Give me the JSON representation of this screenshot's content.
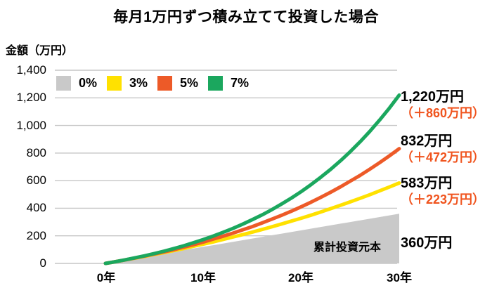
{
  "title": "毎月1万円ずつ積み立てて投資した場合",
  "y_axis_title": "金額（万円）",
  "colors": {
    "background": "#ffffff",
    "grid": "#c6c6c6",
    "text": "#000000",
    "gain_text": "#f0541e"
  },
  "chart_data": {
    "type": "line",
    "title": "毎月1万円ずつ積み立てて投資した場合",
    "xlabel": "",
    "ylabel": "金額（万円）",
    "ylim": [
      0,
      1400
    ],
    "xlim_years": [
      0,
      30
    ],
    "grid": "horizontal",
    "legend_position": "top-left",
    "x": [
      0,
      1,
      2,
      3,
      4,
      5,
      6,
      7,
      8,
      9,
      10,
      11,
      12,
      13,
      14,
      15,
      16,
      17,
      18,
      19,
      20,
      21,
      22,
      23,
      24,
      25,
      26,
      27,
      28,
      29,
      30
    ],
    "x_ticks": [
      0,
      10,
      20,
      30
    ],
    "x_ticklabels": [
      "0年",
      "10年",
      "20年",
      "30年"
    ],
    "y_ticks": [
      0,
      200,
      400,
      600,
      800,
      1000,
      1200,
      1400
    ],
    "y_ticklabels": [
      "0",
      "200",
      "400",
      "600",
      "800",
      "1,000",
      "1,200",
      "1,400"
    ],
    "area_label": "累計投資元本",
    "series": [
      {
        "name": "0%",
        "style": "area",
        "color": "#c9c9c9",
        "values": [
          0,
          12,
          24,
          36,
          48,
          60,
          72,
          84,
          96,
          108,
          120,
          132,
          144,
          156,
          168,
          180,
          192,
          204,
          216,
          228,
          240,
          252,
          264,
          276,
          288,
          300,
          312,
          324,
          336,
          348,
          360
        ],
        "end_label": "360万円",
        "gain_label": ""
      },
      {
        "name": "3%",
        "style": "line",
        "color": "#ffe100",
        "values": [
          0,
          12,
          25,
          38,
          51,
          65,
          79,
          93,
          108,
          124,
          140,
          156,
          173,
          191,
          208,
          227,
          246,
          266,
          286,
          307,
          328,
          350,
          373,
          397,
          421,
          446,
          472,
          498,
          526,
          554,
          583
        ],
        "end_label": "583万円",
        "gain_label": "（＋223万円）"
      },
      {
        "name": "5%",
        "style": "line",
        "color": "#ed5a28",
        "values": [
          0,
          12,
          25,
          39,
          53,
          68,
          84,
          100,
          118,
          136,
          155,
          176,
          197,
          219,
          243,
          267,
          293,
          321,
          349,
          379,
          411,
          444,
          479,
          516,
          555,
          596,
          638,
          683,
          730,
          780,
          832
        ],
        "end_label": "832万円",
        "gain_label": "（＋472万円）"
      },
      {
        "name": "7%",
        "style": "line",
        "color": "#1ba75e",
        "values": [
          0,
          12,
          26,
          40,
          55,
          72,
          89,
          108,
          128,
          150,
          173,
          198,
          225,
          253,
          284,
          317,
          352,
          390,
          431,
          474,
          521,
          571,
          625,
          682,
          744,
          810,
          881,
          957,
          1039,
          1126,
          1220
        ],
        "end_label": "1,220万円",
        "gain_label": "（＋860万円）"
      }
    ]
  }
}
